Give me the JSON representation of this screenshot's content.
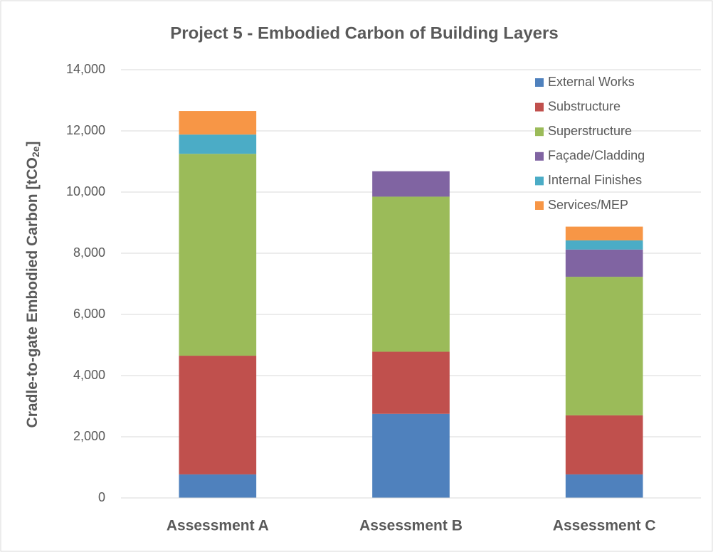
{
  "chart_data": {
    "type": "stacked_bar",
    "title": "Project 5 - Embodied Carbon of Building Layers",
    "y_label": [
      "Cradle-to-gate Embodied Carbon [tCO",
      "2e",
      "]"
    ],
    "categories": [
      "Assessment A",
      "Assessment B",
      "Assessment C"
    ],
    "series": [
      {
        "name": "External Works",
        "color": "#4f81bd",
        "values": [
          770,
          2750,
          770
        ]
      },
      {
        "name": "Substructure",
        "color": "#c0504d",
        "values": [
          3880,
          2030,
          1930
        ]
      },
      {
        "name": "Superstructure",
        "color": "#9bbb59",
        "values": [
          6600,
          5070,
          4530
        ]
      },
      {
        "name": "Façade/Cladding",
        "color": "#8064a2",
        "values": [
          null,
          830,
          890
        ]
      },
      {
        "name": "Internal Finishes",
        "color": "#4bacc6",
        "values": [
          630,
          null,
          300
        ]
      },
      {
        "name": "Services/MEP",
        "color": "#f79646",
        "values": [
          770,
          null,
          450
        ]
      }
    ],
    "ylim": [
      0,
      14000
    ],
    "yticks": [
      0,
      {
        "value": 2000,
        "label": "2,000"
      },
      {
        "value": 4000,
        "label": "4,000"
      },
      {
        "value": 6000,
        "label": "6,000"
      },
      {
        "value": 8000,
        "label": "8,000"
      },
      {
        "value": 10000,
        "label": "10,000"
      },
      {
        "value": 12000,
        "label": "12,000"
      },
      {
        "value": 14000,
        "label": "14,000"
      }
    ],
    "grid": true,
    "legend": "top-right"
  }
}
